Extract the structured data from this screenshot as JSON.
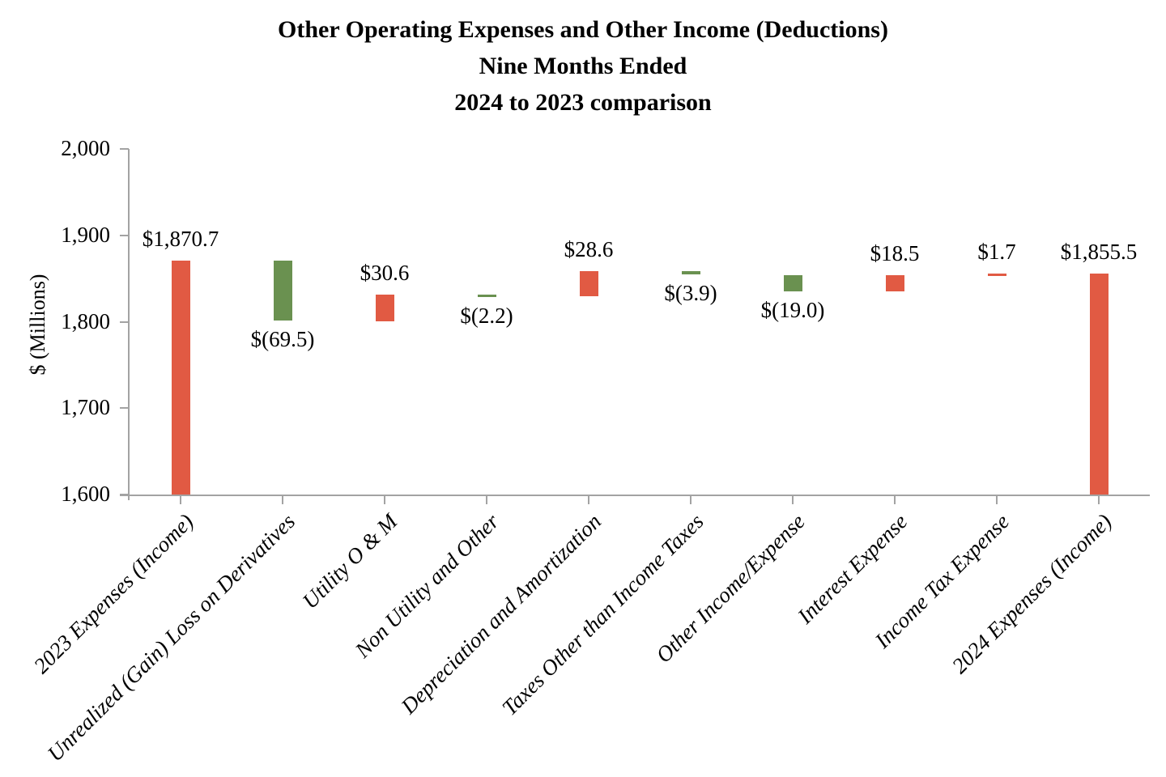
{
  "title": {
    "line1": "Other Operating Expenses and Other Income (Deductions)",
    "line2": "Nine Months Ended",
    "line3": "2024 to 2023 comparison"
  },
  "chart_data": {
    "type": "bar",
    "subtype": "waterfall",
    "title": "Other Operating Expenses and Other Income (Deductions) Nine Months Ended 2024 to 2023 comparison",
    "xlabel": "",
    "ylabel": "$ (Millions)",
    "ylim": [
      1600,
      2000
    ],
    "grid": false,
    "legend": false,
    "yticks": [
      {
        "value": 2000,
        "label": "2,000"
      },
      {
        "value": 1900,
        "label": "1,900"
      },
      {
        "value": 1800,
        "label": "1,800"
      },
      {
        "value": 1700,
        "label": "1,700"
      },
      {
        "value": 1600,
        "label": "1,600"
      }
    ],
    "colors": {
      "increase": "#E15A43",
      "decrease": "#6A9150",
      "axis": "#A3A3A3",
      "text": "#000000"
    },
    "categories": [
      "2023 Expenses (Income)",
      "Unrealized (Gain) Loss on Derivatives",
      "Utility O & M",
      "Non Utility and Other",
      "Depreciation and Amortization",
      "Taxes Other than Income Taxes",
      "Other Income/Expense",
      "Interest Expense",
      "Income Tax Expense",
      "2024 Expenses (Income)"
    ],
    "bars": [
      {
        "category": "2023 Expenses (Income)",
        "value": 1870.7,
        "label": "$1,870.7",
        "start": 1600,
        "end": 1870.7,
        "color": "increase",
        "label_position": "above",
        "role": "total"
      },
      {
        "category": "Unrealized (Gain) Loss on Derivatives",
        "value": -69.5,
        "label": "$(69.5)",
        "start": 1870.7,
        "end": 1801.2,
        "color": "decrease",
        "label_position": "below",
        "role": "delta"
      },
      {
        "category": "Utility O & M",
        "value": 30.6,
        "label": "$30.6",
        "start": 1801.2,
        "end": 1831.8,
        "color": "increase",
        "label_position": "above",
        "role": "delta"
      },
      {
        "category": "Non Utility and Other",
        "value": -2.2,
        "label": "$(2.2)",
        "start": 1831.8,
        "end": 1829.6,
        "color": "decrease",
        "label_position": "below",
        "role": "delta"
      },
      {
        "category": "Depreciation and Amortization",
        "value": 28.6,
        "label": "$28.6",
        "start": 1829.6,
        "end": 1858.2,
        "color": "increase",
        "label_position": "above",
        "role": "delta"
      },
      {
        "category": "Taxes Other than Income Taxes",
        "value": -3.9,
        "label": "$(3.9)",
        "start": 1858.2,
        "end": 1854.3,
        "color": "decrease",
        "label_position": "below",
        "role": "delta"
      },
      {
        "category": "Other Income/Expense",
        "value": -19.0,
        "label": "$(19.0)",
        "start": 1854.3,
        "end": 1835.3,
        "color": "decrease",
        "label_position": "below",
        "role": "delta"
      },
      {
        "category": "Interest Expense",
        "value": 18.5,
        "label": "$18.5",
        "start": 1835.3,
        "end": 1853.8,
        "color": "increase",
        "label_position": "above",
        "role": "delta"
      },
      {
        "category": "Income Tax Expense",
        "value": 1.7,
        "label": "$1.7",
        "start": 1853.8,
        "end": 1855.5,
        "color": "increase",
        "label_position": "above",
        "role": "delta"
      },
      {
        "category": "2024 Expenses (Income)",
        "value": 1855.5,
        "label": "$1,855.5",
        "start": 1600,
        "end": 1855.5,
        "color": "increase",
        "label_position": "above",
        "role": "total"
      }
    ]
  }
}
